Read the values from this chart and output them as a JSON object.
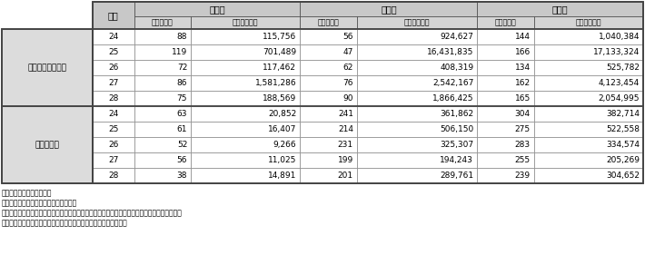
{
  "notes": [
    "注１：法務省資料による。",
    "　２：金額は、千円未満切捨てである。",
    "　３：共犯者に重複して言い渡された没収・追徴は、重複部分を控除した金額を計上している。",
    "　４：外国通貨は、判決日現在の為替レートで日本円に換算した。"
  ],
  "header_top": [
    "没　収",
    "追　徴",
    "総　数"
  ],
  "header_sub": [
    "人員（人）",
    "金額（千円）",
    "人員（人）",
    "金額（千円）",
    "人員（人）",
    "金額（千円）"
  ],
  "year_header": "年次",
  "group1_label": "組織的犯罪処罰法",
  "group2_label": "麻薬特例法",
  "group1_data": [
    [
      "24",
      "88",
      "115,756",
      "56",
      "924,627",
      "144",
      "1,040,384"
    ],
    [
      "25",
      "119",
      "701,489",
      "47",
      "16,431,835",
      "166",
      "17,133,324"
    ],
    [
      "26",
      "72",
      "117,462",
      "62",
      "408,319",
      "134",
      "525,782"
    ],
    [
      "27",
      "86",
      "1,581,286",
      "76",
      "2,542,167",
      "162",
      "4,123,454"
    ],
    [
      "28",
      "75",
      "188,569",
      "90",
      "1,866,425",
      "165",
      "2,054,995"
    ]
  ],
  "group2_data": [
    [
      "24",
      "63",
      "20,852",
      "241",
      "361,862",
      "304",
      "382,714"
    ],
    [
      "25",
      "61",
      "16,407",
      "214",
      "506,150",
      "275",
      "522,558"
    ],
    [
      "26",
      "52",
      "9,266",
      "231",
      "325,307",
      "283",
      "334,574"
    ],
    [
      "27",
      "56",
      "11,025",
      "199",
      "194,243",
      "255",
      "205,269"
    ],
    [
      "28",
      "38",
      "14,891",
      "201",
      "289,761",
      "239",
      "304,652"
    ]
  ],
  "header_bg": "#c8c8c8",
  "header_bg2": "#d4d4d4",
  "group_label_bg": "#dcdcdc",
  "white": "#ffffff",
  "border_dark": "#444444",
  "border_light": "#888888",
  "note_indent": [
    "注１：法務省資料による。",
    "　２：金額は、千円未満切捨てである。",
    "　３：共犯者に重複して言い渡された没収・追徴は、重複部分を控除した金額を計上している。",
    "　４：外国通貨は、判決日現在の為替レートで日本円に換算した。"
  ]
}
